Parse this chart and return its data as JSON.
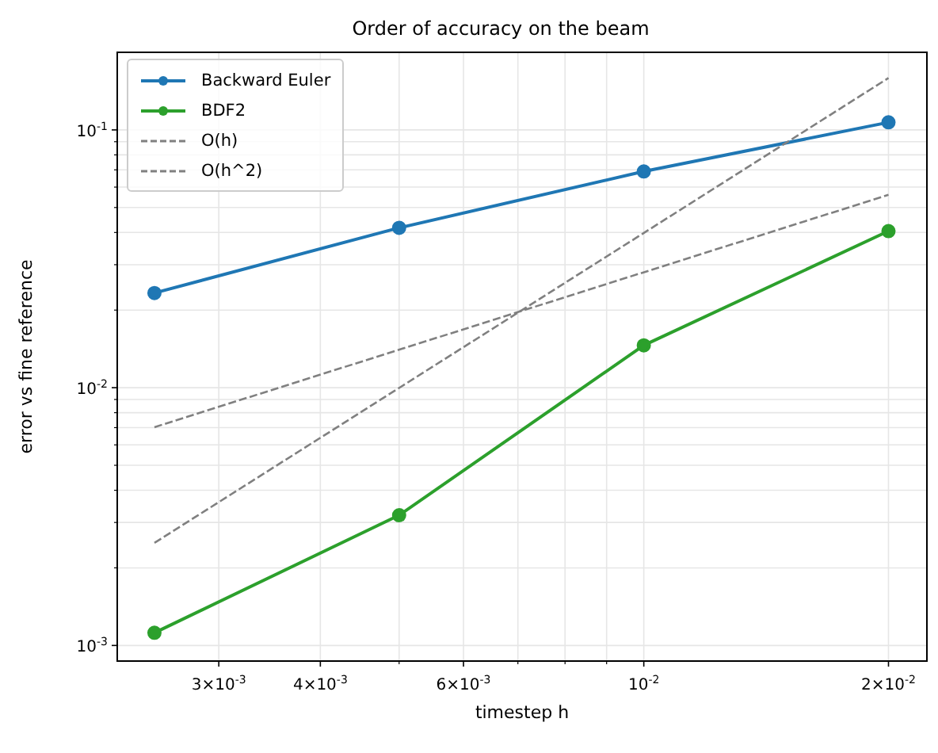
{
  "chart_data": {
    "type": "line",
    "title": "Order of accuracy on the beam",
    "xlabel": "timestep  h",
    "ylabel": "error vs fine reference",
    "log": "xy",
    "grid": true,
    "legend": "top left",
    "xlim": [
      0.00225,
      0.0223
    ],
    "ylim": [
      0.00087,
      0.2
    ],
    "xticks": [
      {
        "value": 0.003,
        "label": "3×10$^{-3}$"
      },
      {
        "value": 0.004,
        "label": "4×10$^{-3}$"
      },
      {
        "value": 0.005,
        "label": null
      },
      {
        "value": 0.006,
        "label": "6×10$^{-3}$"
      },
      {
        "value": 0.007,
        "label": null
      },
      {
        "value": 0.008,
        "label": null
      },
      {
        "value": 0.009,
        "label": null
      },
      {
        "value": 0.01,
        "label": "10$^{-2}$"
      },
      {
        "value": 0.02,
        "label": "2×10$^{-2}$"
      }
    ],
    "yticks": [
      {
        "value": 0.001,
        "label": "10$^{-3}$"
      },
      {
        "value": 0.002,
        "label": null
      },
      {
        "value": 0.003,
        "label": null
      },
      {
        "value": 0.004,
        "label": null
      },
      {
        "value": 0.005,
        "label": null
      },
      {
        "value": 0.006,
        "label": null
      },
      {
        "value": 0.007,
        "label": null
      },
      {
        "value": 0.008,
        "label": null
      },
      {
        "value": 0.009,
        "label": null
      },
      {
        "value": 0.01,
        "label": "10$^{-2}$"
      },
      {
        "value": 0.02,
        "label": null
      },
      {
        "value": 0.03,
        "label": null
      },
      {
        "value": 0.04,
        "label": null
      },
      {
        "value": 0.05,
        "label": null
      },
      {
        "value": 0.06,
        "label": null
      },
      {
        "value": 0.07,
        "label": null
      },
      {
        "value": 0.08,
        "label": null
      },
      {
        "value": 0.09,
        "label": null
      },
      {
        "value": 0.1,
        "label": "10$^{-1}$"
      }
    ],
    "series": [
      {
        "name": "Backward Euler",
        "color": "#1f77b4",
        "marker": "circle",
        "line_style": "solid",
        "x": [
          0.0025,
          0.005,
          0.01,
          0.02
        ],
        "values": [
          0.0233,
          0.0417,
          0.069,
          0.107
        ]
      },
      {
        "name": "BDF2",
        "color": "#2ca02c",
        "marker": "circle",
        "line_style": "solid",
        "x": [
          0.0025,
          0.005,
          0.01,
          0.02
        ],
        "values": [
          0.00112,
          0.0032,
          0.0146,
          0.0405
        ]
      },
      {
        "name": "O(h)",
        "color": "#808080",
        "marker": "none",
        "line_style": "dashed",
        "x": [
          0.0025,
          0.02
        ],
        "values": [
          0.00703,
          0.056
        ]
      },
      {
        "name": "O(h^2)",
        "color": "#808080",
        "marker": "none",
        "line_style": "dashed",
        "x": [
          0.0025,
          0.02
        ],
        "values": [
          0.0025,
          0.159
        ]
      }
    ]
  }
}
